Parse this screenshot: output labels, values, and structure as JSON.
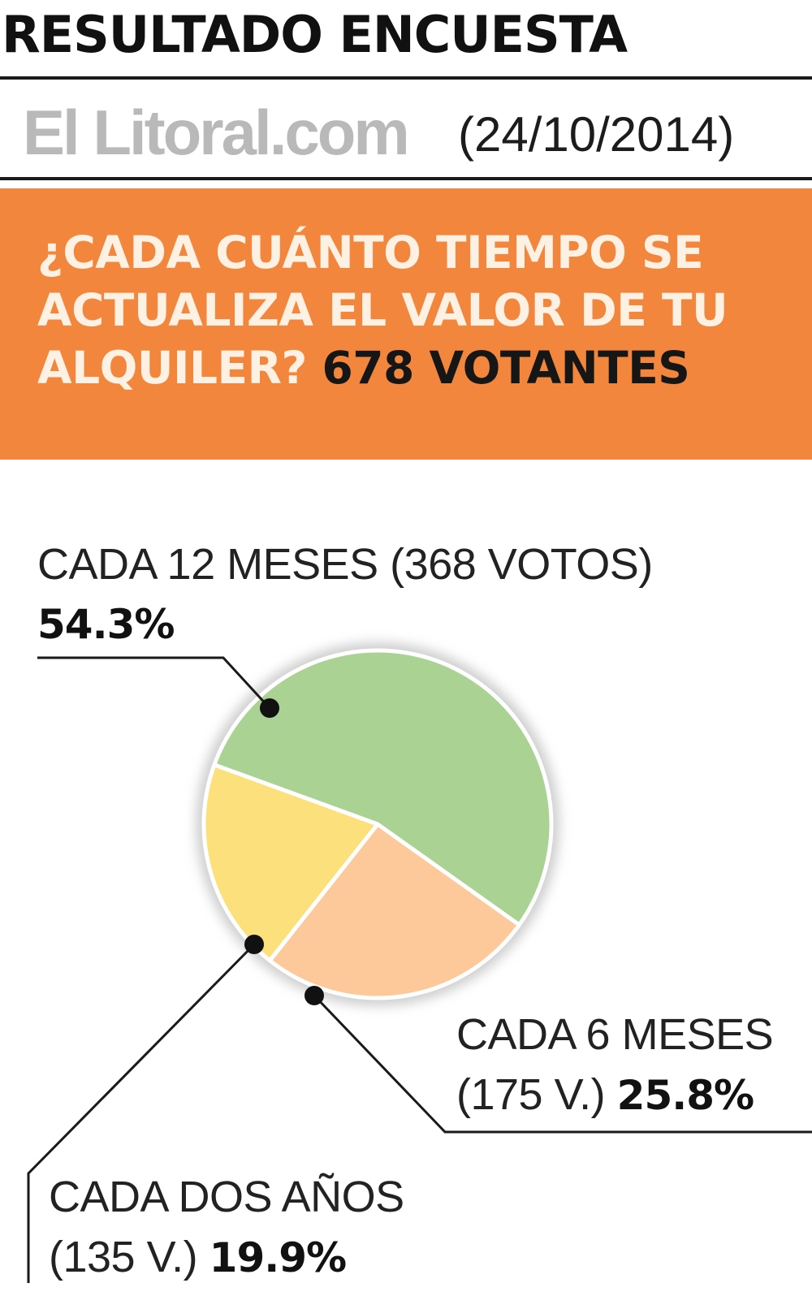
{
  "header": {
    "title": "RESULTADO ENCUESTA",
    "brand": "El Litoral.com",
    "date": "(24/10/2014)"
  },
  "banner": {
    "question": "¿CADA CUÁNTO TIEMPO SE ACTUALIZA EL VALOR DE TU ALQUILER?",
    "voters": "678 VOTANTES"
  },
  "labels": {
    "doce": {
      "line1": "CADA 12 MESES (368 VOTOS)",
      "pct": "54.3%"
    },
    "seis": {
      "line1": "CADA 6 MESES",
      "line2": "(175 V.)",
      "pct": "25.8%"
    },
    "dos": {
      "line1": "CADA DOS AÑOS",
      "line2": "(135 V.)",
      "pct": "19.9%"
    }
  },
  "chart_data": {
    "type": "pie",
    "title": "¿CADA CUÁNTO TIEMPO SE ACTUALIZA EL VALOR DE TU ALQUILER?",
    "total": 678,
    "categories": [
      "CADA 12 MESES",
      "CADA 6 MESES",
      "CADA DOS AÑOS"
    ],
    "values": [
      368,
      175,
      135
    ],
    "percentages": [
      54.3,
      25.8,
      19.9
    ],
    "colors": [
      "#a9d293",
      "#fdc99a",
      "#fce07c"
    ],
    "legend": "none"
  }
}
